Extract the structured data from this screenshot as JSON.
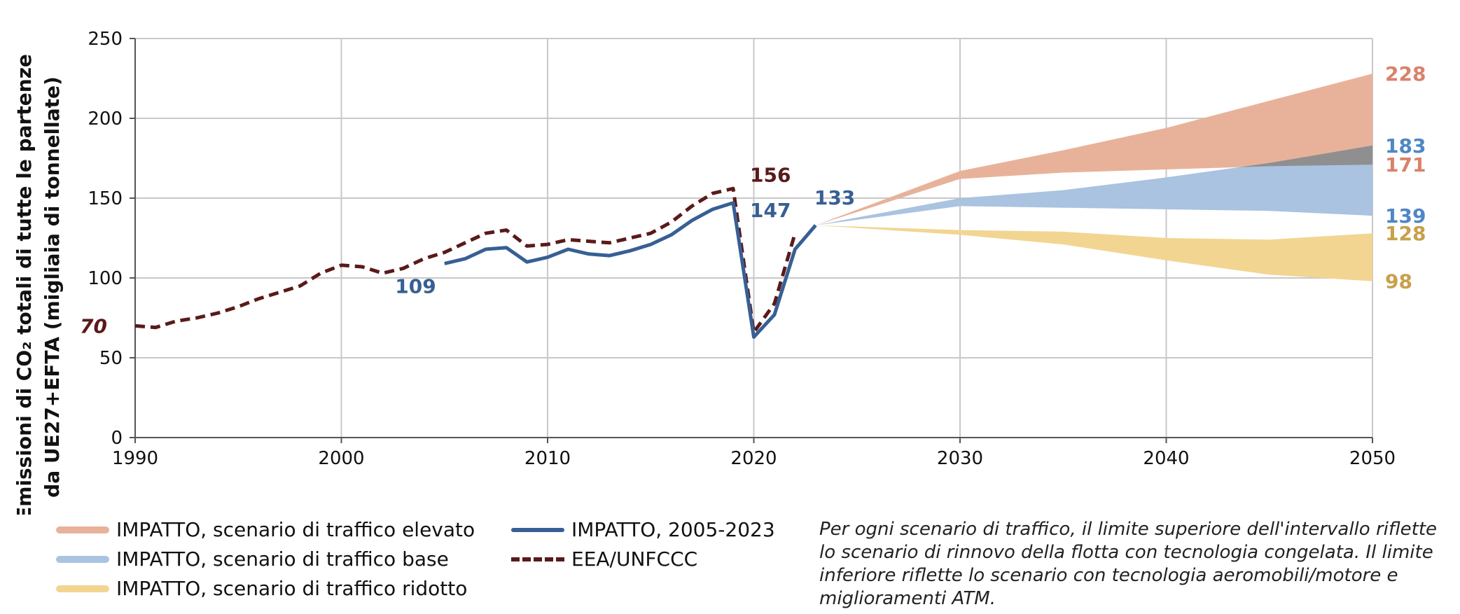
{
  "chart_data": {
    "type": "line",
    "ylabel_lines": [
      "Emissioni di CO₂ totali di tutte le partenze",
      "da UE27+EFTA (migliaia di tonnellate)"
    ],
    "xlim": [
      1990,
      2050
    ],
    "ylim": [
      0,
      250
    ],
    "xticks": [
      1990,
      2000,
      2010,
      2020,
      2030,
      2040,
      2050
    ],
    "yticks": [
      0,
      50,
      100,
      150,
      200,
      250
    ],
    "grid": true,
    "series": [
      {
        "name": "EEA/UNFCCC",
        "style": "dashed",
        "color": "#5a1a1a",
        "points": [
          [
            1990,
            70
          ],
          [
            1991,
            69
          ],
          [
            1992,
            73
          ],
          [
            1993,
            75
          ],
          [
            1994,
            78
          ],
          [
            1995,
            82
          ],
          [
            1996,
            87
          ],
          [
            1997,
            91
          ],
          [
            1998,
            95
          ],
          [
            1999,
            103
          ],
          [
            2000,
            108
          ],
          [
            2001,
            107
          ],
          [
            2002,
            103
          ],
          [
            2003,
            106
          ],
          [
            2004,
            112
          ],
          [
            2005,
            116
          ],
          [
            2006,
            122
          ],
          [
            2007,
            128
          ],
          [
            2008,
            130
          ],
          [
            2009,
            120
          ],
          [
            2010,
            121
          ],
          [
            2011,
            124
          ],
          [
            2012,
            123
          ],
          [
            2013,
            122
          ],
          [
            2014,
            125
          ],
          [
            2015,
            128
          ],
          [
            2016,
            135
          ],
          [
            2017,
            145
          ],
          [
            2018,
            153
          ],
          [
            2019,
            156
          ],
          [
            2020,
            66
          ],
          [
            2021,
            84
          ],
          [
            2022,
            128
          ]
        ]
      },
      {
        "name": "IMPATTO, 2005-2023",
        "style": "solid",
        "color": "#375f94",
        "points": [
          [
            2005,
            109
          ],
          [
            2006,
            112
          ],
          [
            2007,
            118
          ],
          [
            2008,
            119
          ],
          [
            2009,
            110
          ],
          [
            2010,
            113
          ],
          [
            2011,
            118
          ],
          [
            2012,
            115
          ],
          [
            2013,
            114
          ],
          [
            2014,
            117
          ],
          [
            2015,
            121
          ],
          [
            2016,
            127
          ],
          [
            2017,
            136
          ],
          [
            2018,
            143
          ],
          [
            2019,
            147
          ],
          [
            2020,
            63
          ],
          [
            2021,
            77
          ],
          [
            2022,
            118
          ],
          [
            2023,
            133
          ]
        ]
      }
    ],
    "ranges": [
      {
        "name": "IMPATTO, scenario di traffico elevato",
        "color": "#e8b29a",
        "x": [
          2023,
          2030,
          2035,
          2040,
          2045,
          2050
        ],
        "upper": [
          133,
          167,
          180,
          194,
          211,
          228
        ],
        "lower": [
          133,
          162,
          166,
          168,
          170,
          171
        ]
      },
      {
        "name": "IMPATTO, scenario di traffico base",
        "color": "#a9c3e0",
        "x": [
          2023,
          2030,
          2035,
          2040,
          2045,
          2050
        ],
        "upper": [
          133,
          150,
          155,
          163,
          172,
          183
        ],
        "lower": [
          133,
          145,
          144,
          143,
          142,
          139
        ]
      },
      {
        "name": "IMPATTO, scenario di traffico ridotto",
        "color": "#f2d591",
        "x": [
          2023,
          2030,
          2035,
          2040,
          2045,
          2050
        ],
        "upper": [
          133,
          130,
          129,
          125,
          124,
          128
        ],
        "lower": [
          133,
          127,
          121,
          111,
          102,
          98
        ]
      }
    ],
    "overlap_color": "#8f8f8f",
    "value_labels": [
      {
        "text": "70",
        "x": 1990,
        "y": 70,
        "color": "#5a1a1a",
        "italic": true
      },
      {
        "text": "109",
        "x": 2005,
        "y": 109,
        "color": "#375f94"
      },
      {
        "text": "156",
        "x": 2019,
        "y": 156,
        "color": "#5a1a1a"
      },
      {
        "text": "147",
        "x": 2019,
        "y": 147,
        "color": "#375f94"
      },
      {
        "text": "133",
        "x": 2023,
        "y": 133,
        "color": "#375f94"
      }
    ],
    "end_labels": [
      {
        "text": "228",
        "y": 228,
        "color": "#d9826b"
      },
      {
        "text": "183",
        "y": 183,
        "color": "#4f87c6"
      },
      {
        "text": "171",
        "y": 171,
        "color": "#d9826b"
      },
      {
        "text": "139",
        "y": 139,
        "color": "#4f87c6"
      },
      {
        "text": "128",
        "y": 128,
        "color": "#c7a04a"
      },
      {
        "text": "98",
        "y": 98,
        "color": "#c7a04a"
      }
    ]
  },
  "legend": {
    "high": "IMPATTO, scenario di traffico elevato",
    "base": "IMPATTO, scenario di traffico base",
    "low": "IMPATTO, scenario di traffico ridotto",
    "impact_line": "IMPATTO, 2005-2023",
    "eea": "EEA/UNFCCC"
  },
  "note": "Per ogni scenario di traffico, il limite superiore dell'intervallo riflette lo scenario di rinnovo della flotta con tecnologia congelata. Il limite inferiore riflette lo scenario con tecnologia aeromobili/motore e miglioramenti ATM."
}
